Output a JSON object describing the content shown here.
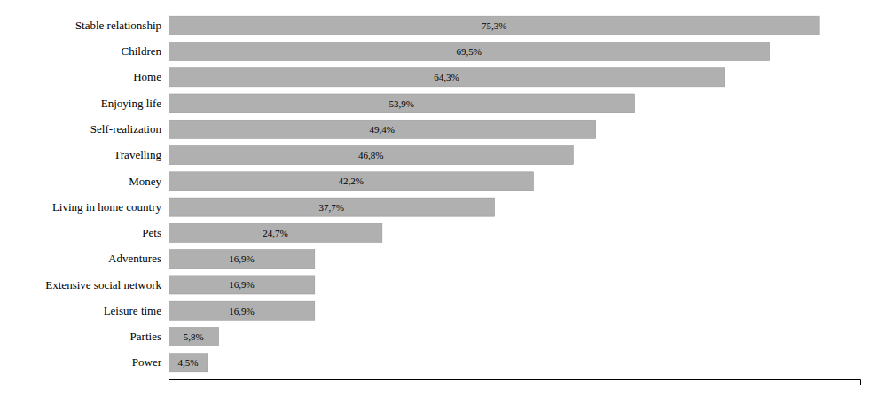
{
  "chart_data": {
    "type": "bar",
    "orientation": "horizontal",
    "categories": [
      "Stable relationship",
      "Children",
      "Home",
      "Enjoying life",
      "Self-realization",
      "Travelling",
      "Money",
      "Living in home country",
      "Pets",
      "Adventures",
      "Extensive social network",
      "Leisure time",
      "Parties",
      "Power"
    ],
    "values": [
      75.3,
      69.5,
      64.3,
      53.9,
      49.4,
      46.8,
      42.2,
      37.7,
      24.7,
      16.9,
      16.9,
      16.9,
      5.8,
      4.5
    ],
    "value_labels": [
      "75,3%",
      "69,5%",
      "64,3%",
      "53,9%",
      "49,4%",
      "46,8%",
      "42,2%",
      "37,7%",
      "24,7%",
      "16,9%",
      "16,9%",
      "16,9%",
      "5,8%",
      "4,5%"
    ],
    "color": "#b0b0b0",
    "xlim": [
      0,
      80
    ],
    "data_labels": true,
    "tick_labels": "y",
    "grid": false
  }
}
